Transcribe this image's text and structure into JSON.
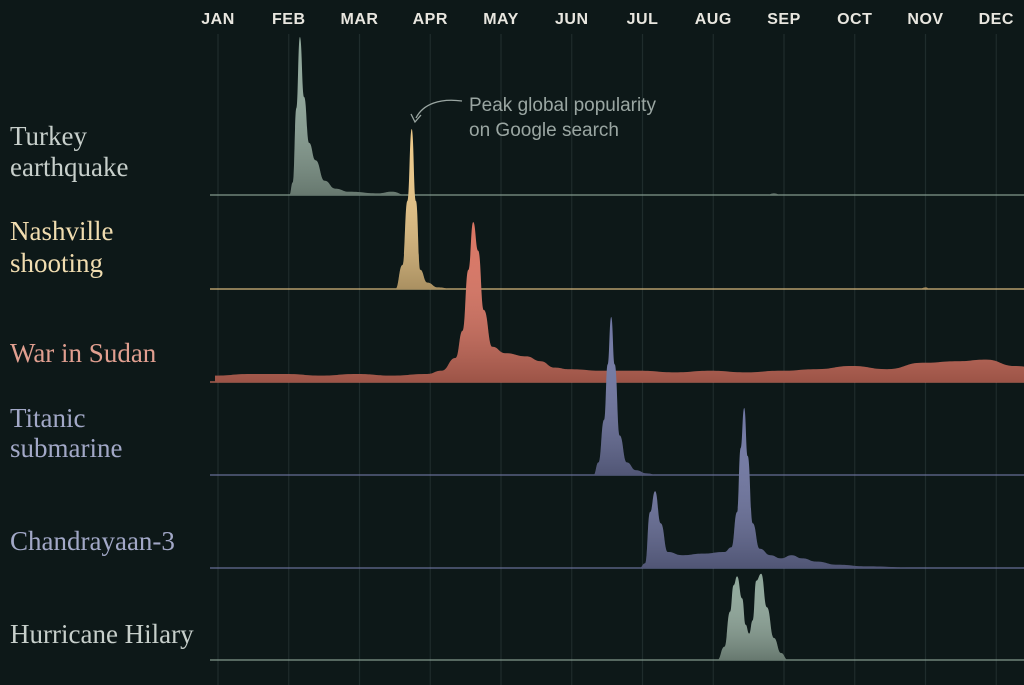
{
  "chart_data": {
    "type": "area",
    "title": "",
    "xlabel": "",
    "ylabel": "",
    "months": [
      "JAN",
      "FEB",
      "MAR",
      "APR",
      "MAY",
      "JUN",
      "JUL",
      "AUG",
      "SEP",
      "OCT",
      "NOV",
      "DEC"
    ],
    "annotation": {
      "line1": "Peak global popularity",
      "line2": "on Google search",
      "series_index": 1
    },
    "series": [
      {
        "name": "Turkey earthquake",
        "label_lines": [
          "Turkey",
          "earthquake"
        ],
        "color": "#8fa79a",
        "label_color": "#c7cfcb",
        "points": [
          [
            1.05,
            0
          ],
          [
            1.1,
            8
          ],
          [
            1.15,
            55
          ],
          [
            1.2,
            100
          ],
          [
            1.26,
            62
          ],
          [
            1.33,
            33
          ],
          [
            1.42,
            22
          ],
          [
            1.55,
            9
          ],
          [
            1.7,
            4
          ],
          [
            1.9,
            2
          ],
          [
            2.3,
            1
          ],
          [
            2.5,
            2
          ],
          [
            2.7,
            0
          ],
          [
            7.8,
            0
          ],
          [
            7.9,
            1
          ],
          [
            8.0,
            0
          ]
        ]
      },
      {
        "name": "Nashville shooting",
        "label_lines": [
          "Nashville",
          "shooting"
        ],
        "color": "#ecc887",
        "label_color": "#f1ddb0",
        "points": [
          [
            2.55,
            0
          ],
          [
            2.65,
            15
          ],
          [
            2.72,
            55
          ],
          [
            2.78,
            100
          ],
          [
            2.84,
            55
          ],
          [
            2.9,
            12
          ],
          [
            3.0,
            4
          ],
          [
            3.15,
            1
          ],
          [
            3.35,
            0
          ],
          [
            9.95,
            0
          ],
          [
            10.05,
            1
          ],
          [
            10.1,
            0
          ]
        ]
      },
      {
        "name": "War in Sudan",
        "label_lines": [
          "War in Sudan"
        ],
        "color": "#d97462",
        "label_color": "#e19f90",
        "points": [
          [
            0.0,
            4
          ],
          [
            0.5,
            5
          ],
          [
            1.0,
            5
          ],
          [
            1.5,
            4
          ],
          [
            2.0,
            5
          ],
          [
            2.5,
            4
          ],
          [
            3.0,
            5
          ],
          [
            3.2,
            7
          ],
          [
            3.4,
            15
          ],
          [
            3.5,
            32
          ],
          [
            3.58,
            70
          ],
          [
            3.65,
            100
          ],
          [
            3.72,
            82
          ],
          [
            3.8,
            45
          ],
          [
            3.92,
            22
          ],
          [
            4.1,
            18
          ],
          [
            4.4,
            16
          ],
          [
            4.6,
            13
          ],
          [
            4.8,
            9
          ],
          [
            5.0,
            8
          ],
          [
            5.5,
            7
          ],
          [
            6.0,
            7
          ],
          [
            6.5,
            6
          ],
          [
            7.0,
            7
          ],
          [
            7.5,
            6
          ],
          [
            8.0,
            7
          ],
          [
            8.5,
            8
          ],
          [
            9.0,
            10
          ],
          [
            9.5,
            8
          ],
          [
            10.0,
            12
          ],
          [
            10.5,
            13
          ],
          [
            10.9,
            14
          ],
          [
            11.3,
            10
          ],
          [
            11.7,
            8
          ],
          [
            12.0,
            8
          ]
        ]
      },
      {
        "name": "Titanic submarine",
        "label_lines": [
          "Titanic",
          "submarine"
        ],
        "color": "#7077a3",
        "label_color": "#a2a8c7",
        "points": [
          [
            5.35,
            0
          ],
          [
            5.42,
            8
          ],
          [
            5.5,
            35
          ],
          [
            5.55,
            70
          ],
          [
            5.6,
            100
          ],
          [
            5.65,
            70
          ],
          [
            5.72,
            25
          ],
          [
            5.82,
            8
          ],
          [
            5.95,
            3
          ],
          [
            6.1,
            1
          ],
          [
            6.25,
            0
          ]
        ]
      },
      {
        "name": "Chandrayaan-3",
        "label_lines": [
          "Chandrayaan-3"
        ],
        "color": "#7077a3",
        "label_color": "#a2a8c7",
        "points": [
          [
            6.0,
            0
          ],
          [
            6.08,
            3
          ],
          [
            6.15,
            35
          ],
          [
            6.22,
            48
          ],
          [
            6.3,
            28
          ],
          [
            6.4,
            10
          ],
          [
            6.6,
            8
          ],
          [
            6.9,
            9
          ],
          [
            7.2,
            10
          ],
          [
            7.3,
            13
          ],
          [
            7.38,
            35
          ],
          [
            7.43,
            75
          ],
          [
            7.48,
            100
          ],
          [
            7.53,
            70
          ],
          [
            7.6,
            28
          ],
          [
            7.7,
            12
          ],
          [
            7.85,
            8
          ],
          [
            8.0,
            6
          ],
          [
            8.15,
            8
          ],
          [
            8.3,
            6
          ],
          [
            8.5,
            4
          ],
          [
            8.8,
            2
          ],
          [
            9.2,
            1
          ],
          [
            10.0,
            0
          ]
        ]
      },
      {
        "name": "Hurricane Hilary",
        "label_lines": [
          "Hurricane Hilary"
        ],
        "color": "#8fa79a",
        "label_color": "#c7cfcb",
        "points": [
          [
            7.1,
            0
          ],
          [
            7.2,
            15
          ],
          [
            7.28,
            55
          ],
          [
            7.33,
            85
          ],
          [
            7.38,
            95
          ],
          [
            7.45,
            70
          ],
          [
            7.5,
            40
          ],
          [
            7.55,
            30
          ],
          [
            7.6,
            45
          ],
          [
            7.65,
            90
          ],
          [
            7.72,
            98
          ],
          [
            7.8,
            60
          ],
          [
            7.9,
            25
          ],
          [
            8.0,
            8
          ],
          [
            8.1,
            0
          ]
        ]
      }
    ]
  }
}
